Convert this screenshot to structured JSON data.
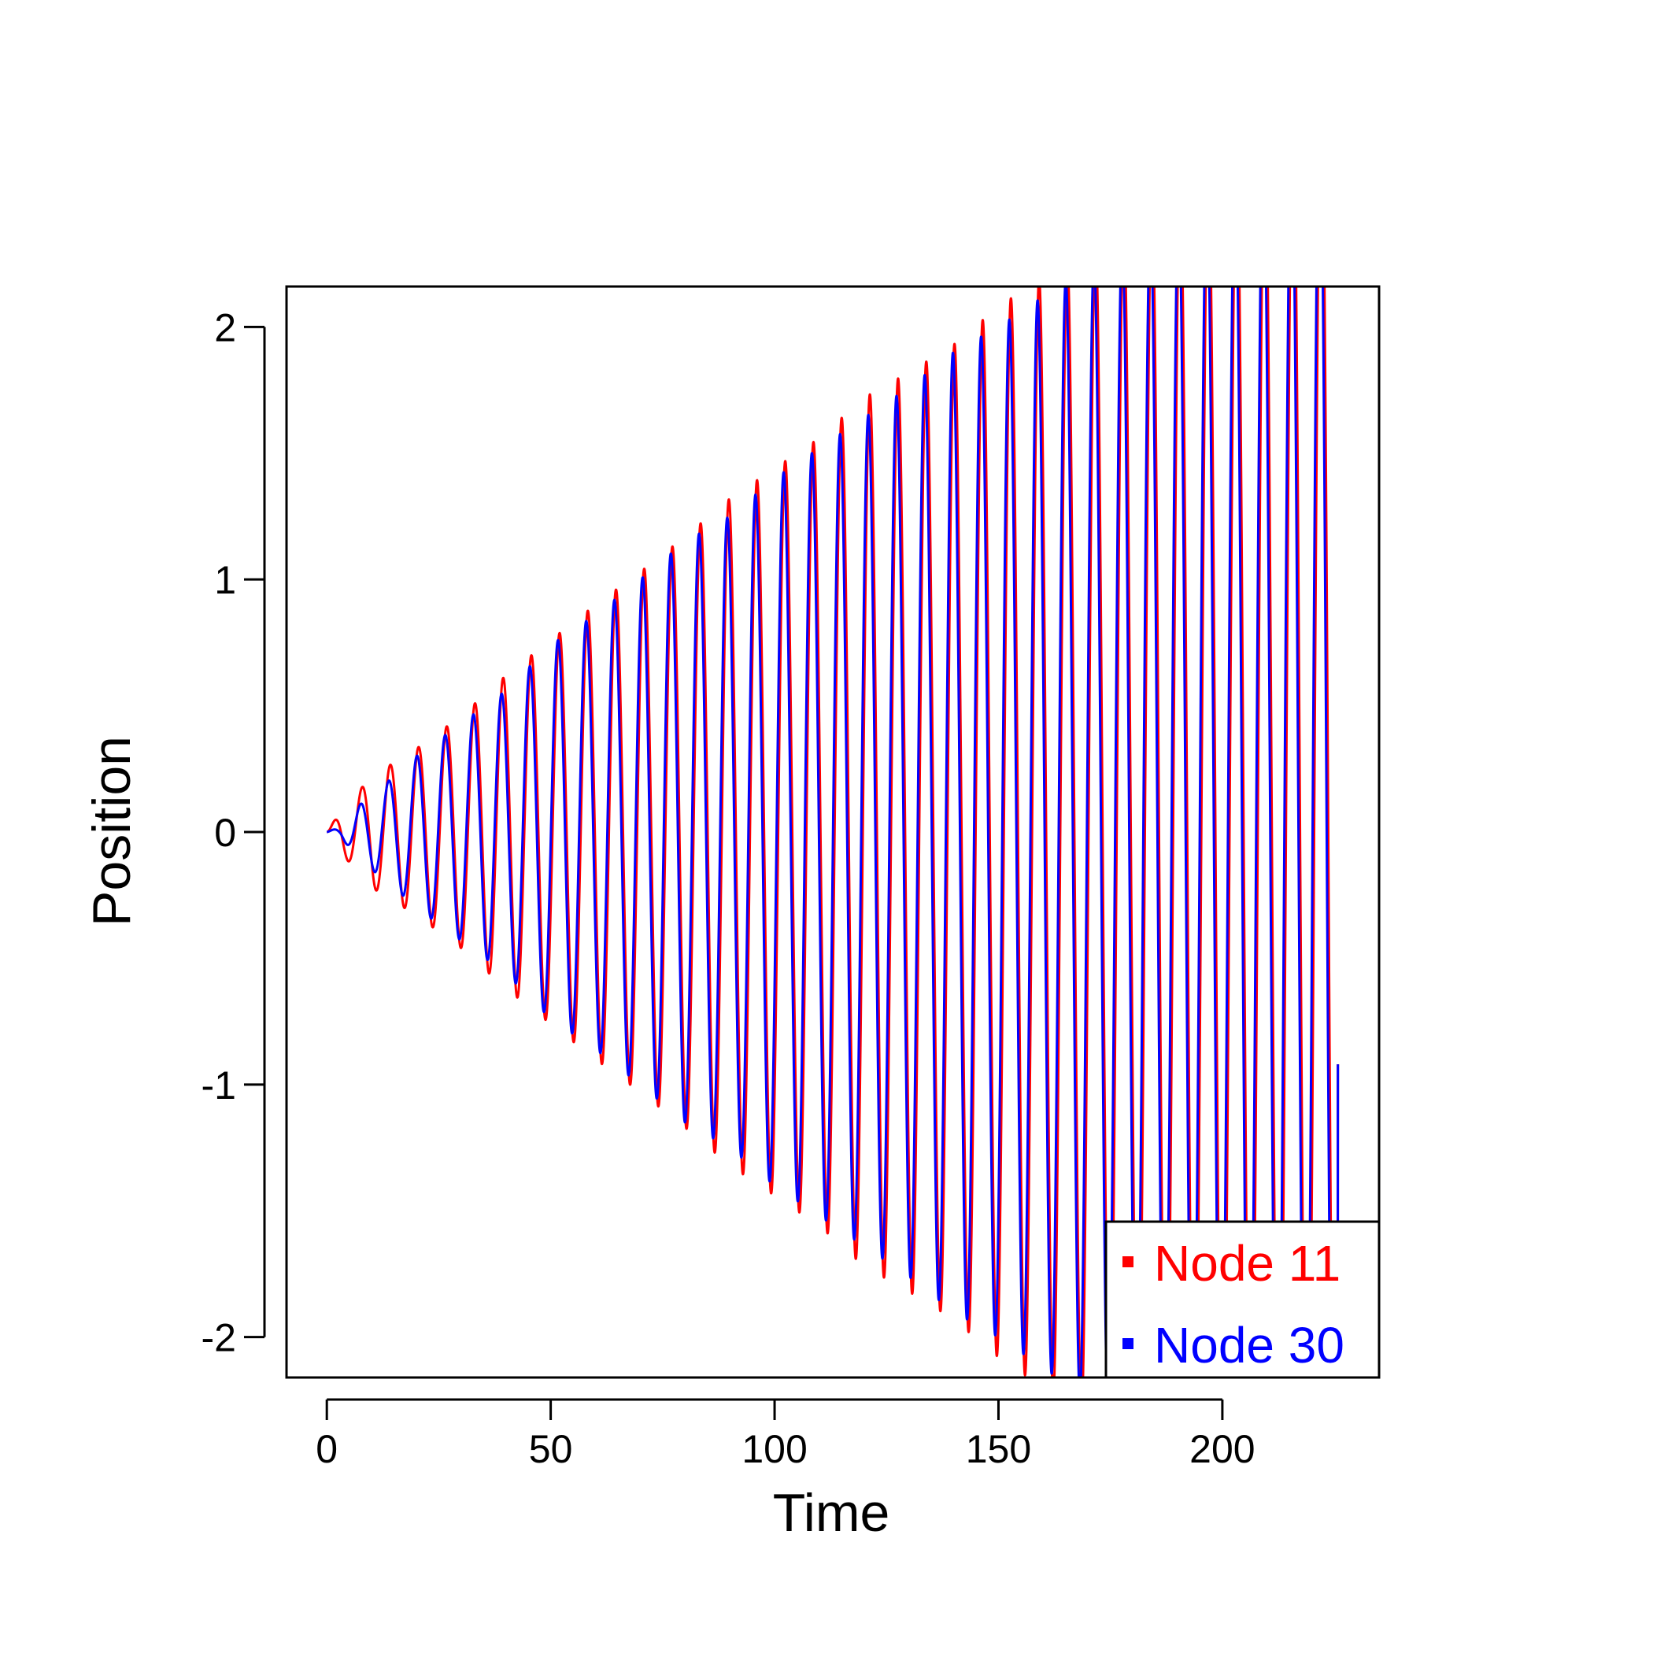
{
  "chart_data": {
    "type": "line",
    "xlabel": "Time",
    "ylabel": "Position",
    "xlim": [
      -9,
      235
    ],
    "ylim": [
      -2.16,
      2.16
    ],
    "x_ticks": [
      0,
      50,
      100,
      150,
      200
    ],
    "x_tick_labels": [
      "0",
      "50",
      "100",
      "150",
      "200"
    ],
    "y_ticks": [
      -2,
      -1,
      0,
      1,
      2
    ],
    "y_tick_labels": [
      "-2",
      "-1",
      "0",
      "1",
      "2"
    ],
    "grid": false,
    "legend_position": "bottom-right",
    "oscillation_period": 6.3,
    "series": [
      {
        "name": "Node 11",
        "color": "#ff0000",
        "end_time": 225.8,
        "end_value": -0.92,
        "envelope": [
          {
            "t": 0,
            "a": 0.0
          },
          {
            "t": 3,
            "a": 0.08
          },
          {
            "t": 10,
            "a": 0.22
          },
          {
            "t": 20,
            "a": 0.33
          },
          {
            "t": 30,
            "a": 0.46
          },
          {
            "t": 40,
            "a": 0.62
          },
          {
            "t": 50,
            "a": 0.76
          },
          {
            "t": 60,
            "a": 0.9
          },
          {
            "t": 70,
            "a": 1.03
          },
          {
            "t": 80,
            "a": 1.17
          },
          {
            "t": 90,
            "a": 1.32
          },
          {
            "t": 100,
            "a": 1.44
          },
          {
            "t": 110,
            "a": 1.56
          },
          {
            "t": 120,
            "a": 1.72
          },
          {
            "t": 130,
            "a": 1.82
          },
          {
            "t": 140,
            "a": 1.93
          },
          {
            "t": 150,
            "a": 2.08
          },
          {
            "t": 160,
            "a": 2.2
          },
          {
            "t": 170,
            "a": 2.32
          },
          {
            "t": 180,
            "a": 2.44
          },
          {
            "t": 226,
            "a": 2.95
          }
        ]
      },
      {
        "name": "Node 30",
        "color": "#0000ff",
        "end_time": 225.8,
        "end_value": -0.92,
        "envelope": [
          {
            "t": 0,
            "a": 0.0
          },
          {
            "t": 3,
            "a": 0.02
          },
          {
            "t": 8,
            "a": 0.12
          },
          {
            "t": 15,
            "a": 0.22
          },
          {
            "t": 20,
            "a": 0.3
          },
          {
            "t": 30,
            "a": 0.43
          },
          {
            "t": 40,
            "a": 0.56
          },
          {
            "t": 50,
            "a": 0.74
          },
          {
            "t": 60,
            "a": 0.86
          },
          {
            "t": 70,
            "a": 1.0
          },
          {
            "t": 80,
            "a": 1.15
          },
          {
            "t": 90,
            "a": 1.25
          },
          {
            "t": 100,
            "a": 1.4
          },
          {
            "t": 110,
            "a": 1.52
          },
          {
            "t": 120,
            "a": 1.64
          },
          {
            "t": 130,
            "a": 1.76
          },
          {
            "t": 140,
            "a": 1.9
          },
          {
            "t": 150,
            "a": 2.0
          },
          {
            "t": 160,
            "a": 2.12
          },
          {
            "t": 170,
            "a": 2.25
          },
          {
            "t": 180,
            "a": 2.38
          },
          {
            "t": 226,
            "a": 2.9
          }
        ]
      }
    ]
  }
}
